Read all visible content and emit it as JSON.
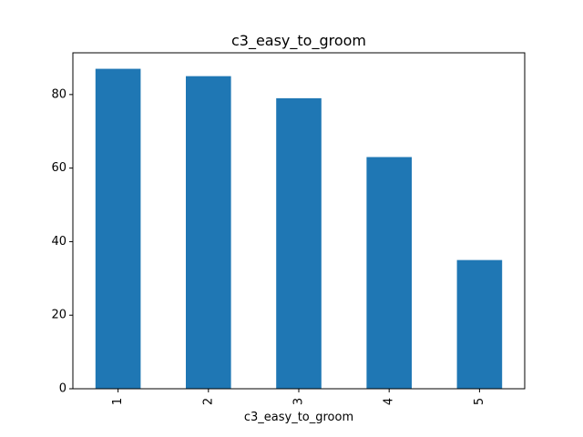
{
  "chart_data": {
    "type": "bar",
    "title": "c3_easy_to_groom",
    "xlabel": "c3_easy_to_groom",
    "ylabel": "",
    "categories": [
      "1",
      "2",
      "3",
      "4",
      "5"
    ],
    "values": [
      87,
      85,
      79,
      63,
      35
    ],
    "ylim": [
      0,
      91.35
    ],
    "yticks": [
      0,
      20,
      40,
      60,
      80
    ],
    "bar_color": "#1f77b4",
    "grid": false,
    "legend": "none"
  }
}
